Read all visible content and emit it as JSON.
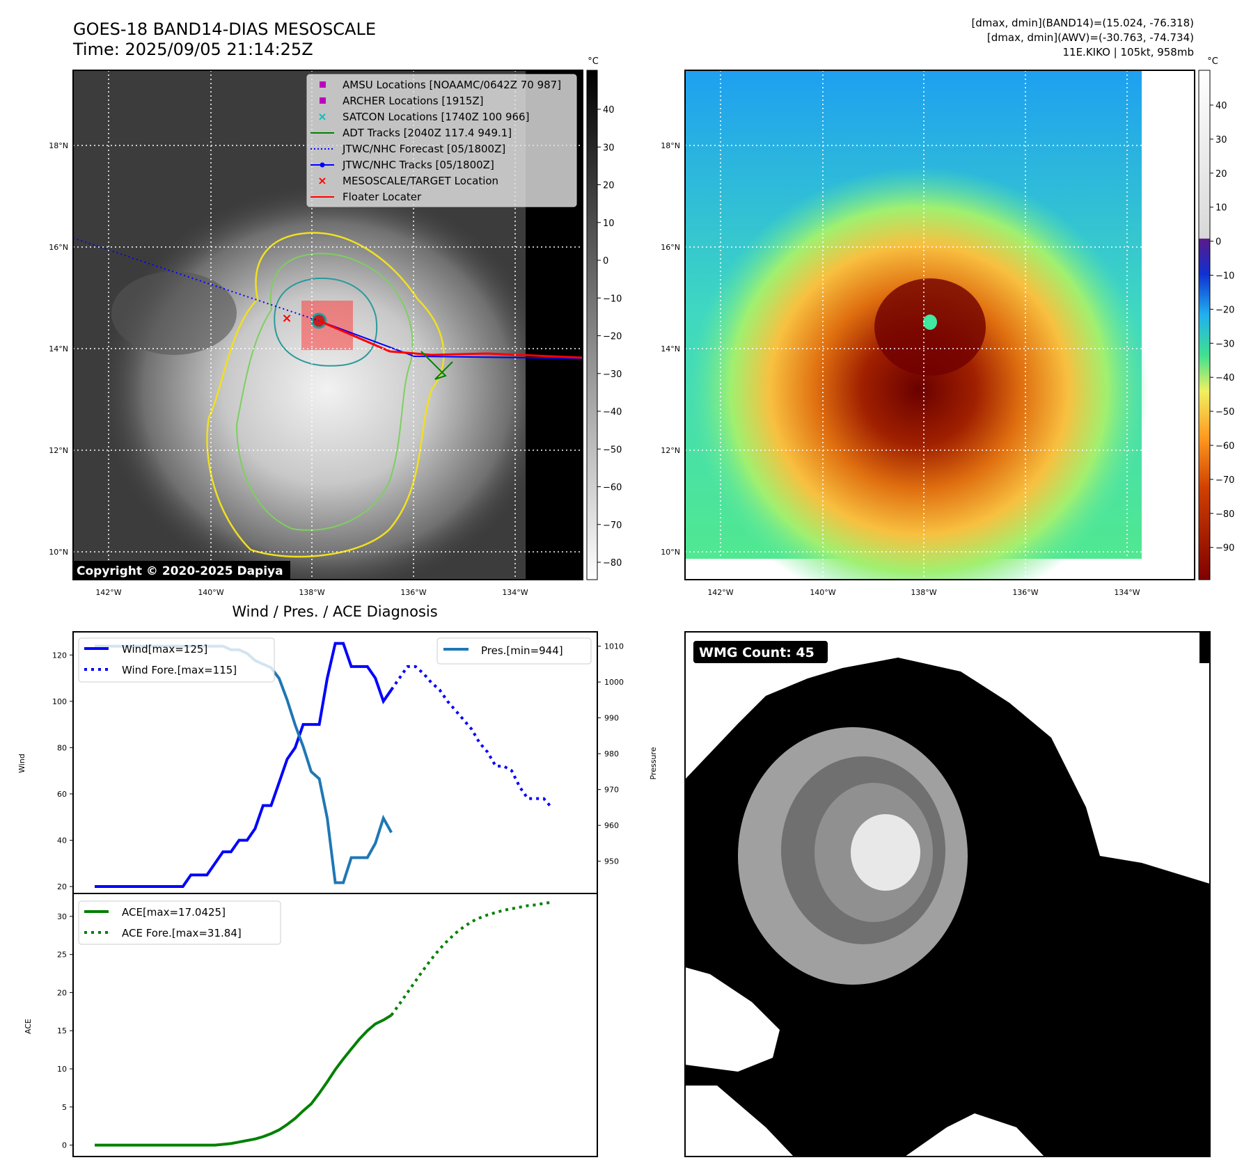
{
  "header": {
    "title": "GOES-18 BAND14-DIAS MESOSCALE",
    "time": "Time: 2025/09/05 21:14:25Z",
    "stats_band14": "[dmax, dmin](BAND14)=(15.024, -76.318)",
    "stats_awv": "[dmax, dmin](AWV)=(-30.763, -74.734)",
    "storm": "11E.KIKO | 105kt, 958mb"
  },
  "maps": {
    "lon_ticks": [
      "142°W",
      "140°W",
      "138°W",
      "136°W",
      "134°W"
    ],
    "lat_ticks": [
      "18°N",
      "16°N",
      "14°N",
      "12°N",
      "10°N"
    ],
    "colorbar_unit": "°C",
    "left_colorbar_ticks": [
      "40",
      "30",
      "20",
      "10",
      "0",
      "−10",
      "−20",
      "−30",
      "−40",
      "−50",
      "−60",
      "−70",
      "−80"
    ],
    "right_colorbar_ticks": [
      "40",
      "30",
      "20",
      "10",
      "0",
      "−10",
      "−20",
      "−30",
      "−40",
      "−50",
      "−60",
      "−70",
      "−80",
      "−90"
    ],
    "copyright": "Copyright © 2020-2025 Dapiya",
    "legend": [
      {
        "label": "AMSU Locations [NOAAMC/0642Z 70 987]",
        "marker": "square",
        "color": "#c000c0"
      },
      {
        "label": "ARCHER Locations [1915Z]",
        "marker": "square",
        "color": "#c000c0"
      },
      {
        "label": "SATCON Locations [1740Z 100 966]",
        "marker": "x",
        "color": "#00bfbf"
      },
      {
        "label": "ADT Tracks [2040Z 117.4 949.1]",
        "marker": "line",
        "color": "#008000"
      },
      {
        "label": "JTWC/NHC Forecast [05/1800Z]",
        "marker": "dotted",
        "color": "#0000ff"
      },
      {
        "label": "JTWC/NHC Tracks [05/1800Z]",
        "marker": "line-dot",
        "color": "#0000ff"
      },
      {
        "label": "MESOSCALE/TARGET Location",
        "marker": "x",
        "color": "#ff0000"
      },
      {
        "label": "Floater Locater",
        "marker": "line",
        "color": "#ff0000"
      }
    ]
  },
  "wmg": {
    "badge": "WMG Count: 45"
  },
  "chart_data": [
    {
      "type": "line",
      "title": "Wind / Pres. / ACE Diagnosis",
      "ylabel": "Wind",
      "y2label": "Pressure",
      "ylim": [
        17,
        130
      ],
      "y2lim": [
        941,
        1014
      ],
      "yticks": [
        "20",
        "40",
        "60",
        "80",
        "100",
        "120"
      ],
      "y2ticks": [
        "950",
        "960",
        "970",
        "980",
        "990",
        "1000",
        "1010"
      ],
      "series": [
        {
          "name": "Wind[max=125]",
          "style": "solid",
          "color": "#0000ff",
          "x_start": 0,
          "values": [
            20,
            20,
            20,
            20,
            20,
            20,
            20,
            20,
            20,
            20,
            20,
            20,
            25,
            25,
            25,
            30,
            35,
            35,
            40,
            40,
            45,
            55,
            55,
            65,
            75,
            80,
            90,
            90,
            90,
            110,
            125,
            125,
            115,
            115,
            115,
            110,
            100,
            105
          ]
        },
        {
          "name": "Wind Fore.[max=115]",
          "style": "dotted",
          "color": "#0000ff",
          "x_start": 37,
          "values": [
            105,
            110,
            115,
            115,
            112,
            108,
            105,
            100,
            96,
            92,
            88,
            82,
            78,
            72,
            72,
            70,
            63,
            58,
            58,
            58,
            54
          ]
        },
        {
          "name": "Pres.[min=944]",
          "style": "solid",
          "color": "#1f77b4",
          "axis": "right",
          "x_start": 0,
          "values": [
            1010,
            1010,
            1010,
            1010,
            1010,
            1010,
            1010,
            1010,
            1010,
            1010,
            1010,
            1010,
            1010,
            1010,
            1010,
            1010,
            1010,
            1009,
            1009,
            1008,
            1006,
            1005,
            1004,
            1001,
            995,
            988,
            982,
            975,
            973,
            962,
            944,
            944,
            951,
            951,
            951,
            955,
            962,
            958
          ]
        }
      ]
    },
    {
      "type": "line",
      "ylabel": "ACE",
      "ylim": [
        -1.5,
        33
      ],
      "yticks": [
        "0",
        "5",
        "10",
        "15",
        "20",
        "25",
        "30"
      ],
      "series": [
        {
          "name": "ACE[max=17.0425]",
          "style": "solid",
          "color": "#008000",
          "x_start": 0,
          "values": [
            0,
            0,
            0,
            0,
            0,
            0,
            0,
            0,
            0,
            0,
            0,
            0,
            0,
            0,
            0,
            0,
            0.1,
            0.2,
            0.4,
            0.6,
            0.8,
            1.1,
            1.5,
            2.0,
            2.7,
            3.5,
            4.5,
            5.4,
            6.8,
            8.3,
            9.9,
            11.3,
            12.6,
            13.9,
            15.0,
            15.9,
            16.4,
            17.04
          ]
        },
        {
          "name": "ACE Fore.[max=31.84]",
          "style": "dotted",
          "color": "#008000",
          "x_start": 37,
          "values": [
            17.04,
            18.5,
            20,
            21.5,
            23,
            24.4,
            25.7,
            26.8,
            27.8,
            28.6,
            29.3,
            29.8,
            30.2,
            30.5,
            30.8,
            31.0,
            31.2,
            31.4,
            31.5,
            31.7,
            31.84
          ]
        }
      ]
    }
  ]
}
